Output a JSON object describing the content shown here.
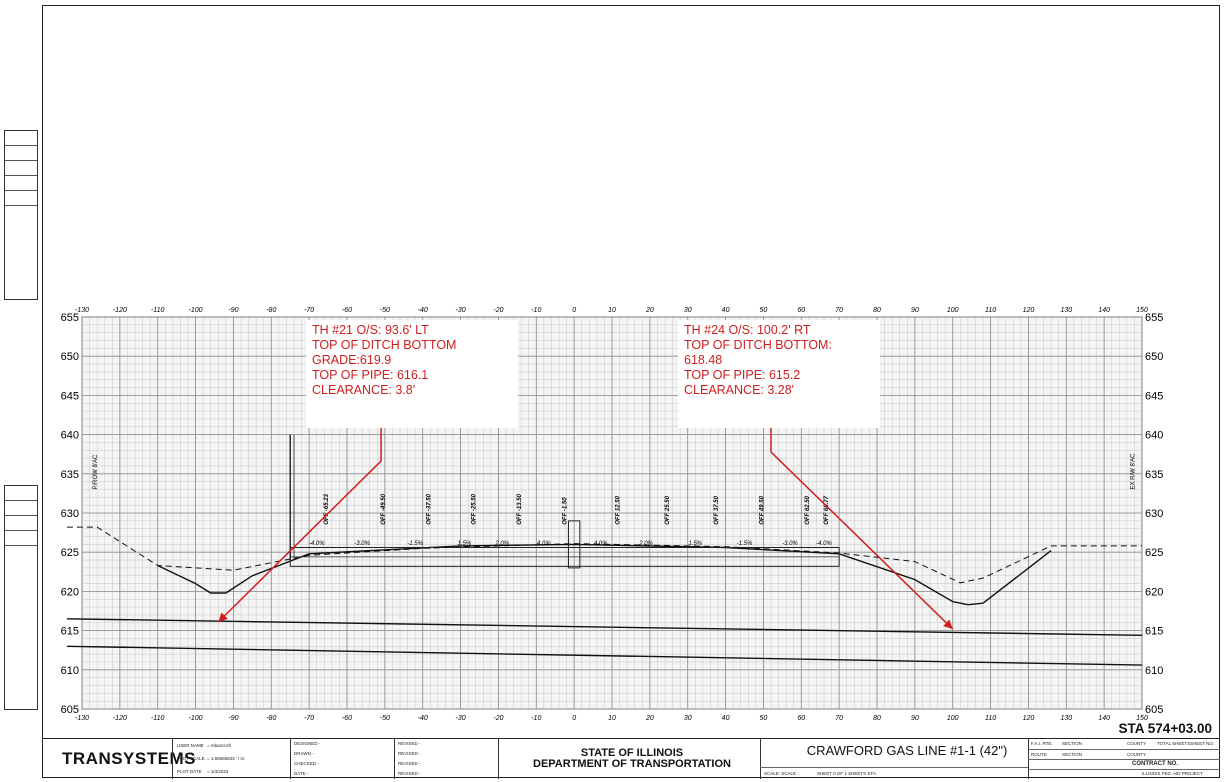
{
  "chart_data": {
    "type": "line",
    "title": "",
    "xlabel": "",
    "ylabel": "",
    "xlim": [
      -130,
      150
    ],
    "ylim": [
      605,
      655
    ],
    "x_ticks": [
      -130,
      -120,
      -110,
      -100,
      -90,
      -80,
      -70,
      -60,
      -50,
      -40,
      -30,
      -20,
      -10,
      0,
      10,
      20,
      30,
      40,
      50,
      60,
      70,
      80,
      90,
      100,
      110,
      120,
      130,
      140,
      150
    ],
    "y_ticks": [
      605,
      610,
      615,
      620,
      625,
      630,
      635,
      640,
      645,
      650,
      655
    ],
    "grid": "on",
    "series": [
      {
        "style": "solid",
        "x": [
          -110,
          -100,
          -96,
          -92,
          -85,
          -70,
          -30,
          0,
          40,
          70,
          90,
          100,
          104,
          108,
          126
        ],
        "y": [
          623.3,
          621,
          619.8,
          619.8,
          622,
          624.8,
          625.8,
          626,
          625.6,
          624.8,
          621.5,
          618.7,
          618.3,
          618.5,
          625.2
        ]
      },
      {
        "style": "dashed",
        "x": [
          -145,
          -126,
          -110,
          -90,
          -70,
          -40,
          0,
          40,
          70,
          90,
          102,
          108,
          126,
          150
        ],
        "y": [
          628.2,
          628.2,
          623.3,
          622.7,
          624.6,
          625.5,
          626.1,
          625.7,
          624.9,
          623.8,
          621.1,
          621.7,
          625.8,
          625.8
        ]
      },
      {
        "style": "solid",
        "x": [
          -145,
          150
        ],
        "y": [
          616.5,
          614.4
        ]
      },
      {
        "style": "solid",
        "x": [
          -145,
          150
        ],
        "y": [
          613,
          610.6
        ]
      }
    ],
    "annotations": [
      "P/ROW 8'AC",
      "EX R/W 8'AC"
    ]
  },
  "callouts": {
    "left": "TH #21 O/S: 93.6' LT\nTOP OF DITCH BOTTOM\nGRADE:619.9\nTOP OF PIPE: 616.1\nCLEARANCE: 3.8'",
    "right": "TH #24 O/S: 100.2' RT\nTOP OF DITCH BOTTOM:\n618.48\nTOP OF PIPE: 615.2\nCLEARANCE: 3.28'"
  },
  "offset_labels": [
    "OFF -65.23",
    "OFF -49.50",
    "OFF -37.50",
    "OFF -25.50",
    "OFF -13.50",
    "OFF -1.50",
    "OFF 12.50",
    "OFF 25.50",
    "OFF 37.50",
    "OFF 49.50",
    "OFF 62.50",
    "OFF 66.77"
  ],
  "slope_labels": [
    "-4.0%",
    "-3.0%",
    "-1.5%",
    "1.5%",
    "2.0%",
    "4.0%",
    "4.0%",
    "2.0%",
    "1.5%",
    "-1.5%",
    "-3.0%",
    "-4.0%"
  ],
  "colors": {
    "callout_text": "#d01e1e",
    "leader": "#d01e1e",
    "grid_minor": "#bdbdbd",
    "grid_major": "#8a8a8a"
  },
  "station": "STA 574+03.00",
  "title_block": {
    "logo": "TRANSYSTEMS",
    "user_name_label": "USER NAME",
    "user_name": "= mbancroft",
    "plot_scale_label": "PLOT SCALE",
    "plot_scale": "= 1.56666633 ' / in.",
    "plot_date_label": "PLOT DATE",
    "plot_date": "= 1/4/2023",
    "designed": "DESIGNED  -",
    "drawn": "DRAWN  -",
    "checked": "CHECKED  -",
    "date": "DATE  -",
    "revised": "REVISED  -",
    "state": "STATE OF ILLINOIS",
    "department": "DEPARTMENT OF TRANSPORTATION",
    "project": "CRAWFORD GAS LINE #1-1 (42\")",
    "scale": "SCALE: SCALE",
    "sheet": "SHEET 0   OF 1   SHEETS   STA.",
    "fai_rte": "F.A.I. RTE.",
    "section": "SECTION",
    "county": "COUNTY",
    "total_sheets": "TOTAL SHEETS",
    "sheet_no": "SHEET NO.",
    "route": "ROUTE",
    "contract_no": "CONTRACT NO.",
    "illinois_fed": "ILLINOIS  FED. AID PROJECT"
  }
}
